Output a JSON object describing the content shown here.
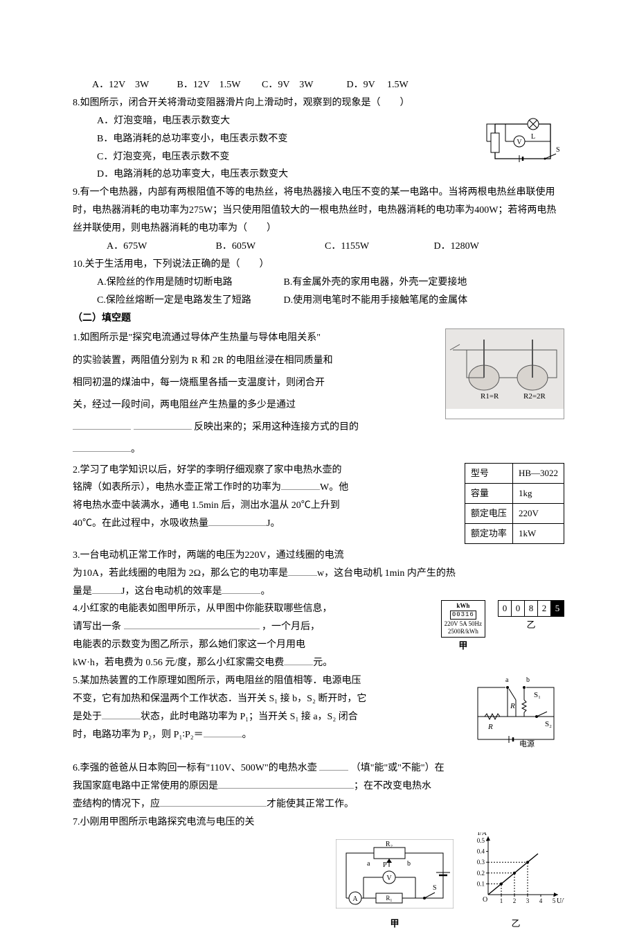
{
  "q7_options": {
    "a": "A．12V　3W",
    "b": "B．12V　1.5W",
    "c": "C．9V　3W",
    "d": "D．9V　 1.5W"
  },
  "q8": {
    "stem": "8.如图所示，闭合开关将滑动变阻器滑片向上滑动时，观察到的现象是（　　）",
    "a": "A．灯泡变暗，电压表示数变大",
    "b": "B．电路消耗的总功率变小，电压表示数不变",
    "c": "C．灯泡变亮，电压表示数不变",
    "d": "D．电路消耗的总功率变大，电压表示数变大",
    "fig_labels": {
      "lamp": "L",
      "voltmeter": "V",
      "switch": "S"
    }
  },
  "q9": {
    "stem": "9.有一个电热器，内部有两根阻值不等的电热丝，将电热器接入电压不变的某一电路中。当将两根电热丝串联使用时，电热器消耗的电功率为275W；当只使用阻值较大的一根电热丝时，电热器消耗的电功率为400W；若将两电热丝并联使用，则电热器消耗的电功率为（　　）",
    "a": "A．675W",
    "b": "B．605W",
    "c": "C．1155W",
    "d": "D．1280W"
  },
  "q10": {
    "stem": "10.关于生活用电，下列说法正确的是（　　）",
    "a": "A.保险丝的作用是随时切断电路",
    "b": "B.有金属外壳的家用电器，外壳一定要接地",
    "c": "C.保险丝熔断一定是电路发生了短路",
    "d": "D.使用测电笔时不能用手接触笔尾的金属体"
  },
  "section2_title": "（二）填空题",
  "f1": {
    "l1": "1.如图所示是\"探究电流通过导体产生热量与导体电阻关系\"",
    "l2": "的实验装置，两阻值分别为 R 和 2R 的电阻丝浸在相同质量和",
    "l3": "相同初温的煤油中，每一烧瓶里各插一支温度计，则闭合开",
    "l4": "关，经过一段时间，两电阻丝产生热量的多少是通过",
    "l5a": "反映出来的；采用这种连接方式的目的",
    "fig": {
      "left": "R1=R",
      "right": "R2=2R"
    }
  },
  "f2": {
    "l1": "2.学习了电学知识以后，好学的李明仔细观察了家中电热水壶的",
    "l2a": "铭牌（如表所示），电热水壶正常工作时的功率为",
    "l2b": "W。他",
    "l3": "将电热水壶中装满水，通电 1.5min 后，测出水温从 20℃上升到",
    "l4a": "40℃。在此过程中，水吸收热量",
    "l4b": "J。",
    "table": {
      "r1a": "型号",
      "r1b": "HB—3022",
      "r2a": "容量",
      "r2b": "1kg",
      "r3a": "额定电压",
      "r3b": "220V",
      "r4a": "额定功率",
      "r4b": "1kW"
    }
  },
  "f3": {
    "l1": "3.一台电动机正常工作时，两端的电压为220V，通过线圈的电流",
    "l2a": "为10A，若此线圈的电阻为 2Ω，那么它的电功率是",
    "l2b": "w，这台电动机 1min 内产生的热",
    "l3a": "量是",
    "l3b": "J，这台电动机的效率是",
    "l3c": "。"
  },
  "f4": {
    "l1": "4.小红家的电能表如图甲所示，从甲图中你能获取哪些信息，",
    "l2a": "请写出一条",
    "l2b": "，一个月后，",
    "l3": "电能表的示数变为图乙所示，那么她们家这一个月用电",
    "l4a": "kW·h，若电费为 0.56 元/度，那么小红家需交电费",
    "l4b": "元。",
    "meter_a": {
      "title": "kWh",
      "digits": "00316",
      "spec1": "220V 5A 50Hz",
      "spec2": "2500R/kWh",
      "caption": "甲"
    },
    "meter_b": {
      "digits": [
        "0",
        "0",
        "8",
        "2",
        "5"
      ],
      "caption": "乙"
    }
  },
  "f5": {
    "l1": "5.某加热装置的工作原理如图所示，两电阻丝的阻值相等．电源电压",
    "l2": "不变，它有加热和保温两个工作状态．当开关 S₁ 接 b，S₂ 断开时，它",
    "l3a": "是处于",
    "l3b": "状态，此时电路功率为 P₁；当开关 S₁ 接 a，S₂ 闭合",
    "l4a": "时，电路功率为 P₂，则 P₁∶P₂＝",
    "l4b": "。",
    "fig": {
      "a": "a",
      "b": "b",
      "S1": "S₁",
      "S2": "S₂",
      "R": "R",
      "src": "电源"
    }
  },
  "f6": {
    "l1a": "6.李强的爸爸从日本购回一标有\"110V、500W\"的电热水壶",
    "l1b": "（填\"能\"或\"不能\"）在",
    "l2a": "我国家庭电路中正常使用的原因是",
    "l2b": "；在不改变电热水",
    "l3a": "壶结构的情况下，应",
    "l3b": "才能使其正常工作。"
  },
  "f7": {
    "l1": "7.小刚用甲图所示电路探究电流与电压的关",
    "circuit": {
      "R2": "R₂",
      "a": "a",
      "b": "b",
      "P": "P",
      "V": "V",
      "R1": "R₁",
      "A": "A",
      "S": "S",
      "cap": "甲"
    },
    "graph": {
      "ylabel": "I/A",
      "xlabel": "U/V",
      "yvals": [
        "0.1",
        "0.2",
        "0.3",
        "0.4",
        "0.5"
      ],
      "xvals": [
        "1",
        "2",
        "3",
        "4",
        "5"
      ],
      "origin": "O",
      "cap": "乙",
      "points": [
        [
          1,
          0.1
        ],
        [
          2,
          0.2
        ],
        [
          3,
          0.3
        ]
      ],
      "axis_max_x": 5,
      "axis_max_y": 0.5
    }
  }
}
